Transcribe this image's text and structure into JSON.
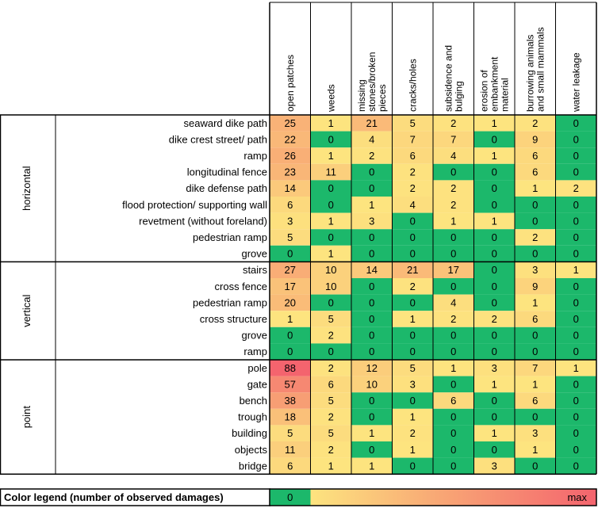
{
  "chart_data": {
    "type": "heatmap",
    "title": "",
    "columns": [
      [
        "open patches"
      ],
      [
        "weeds"
      ],
      [
        "missing",
        "stones/broken",
        "pieces"
      ],
      [
        "cracks/holes"
      ],
      [
        "subsidence and",
        "bulging"
      ],
      [
        "erosion of",
        "embankment",
        "material"
      ],
      [
        "burrowing animals",
        "and small mammals"
      ],
      [
        "water leakage"
      ]
    ],
    "groups": [
      {
        "name": "horizontal",
        "rows": [
          {
            "label": "seaward dike path",
            "values": [
              25,
              1,
              21,
              5,
              2,
              1,
              2,
              0
            ]
          },
          {
            "label": "dike crest street/ path",
            "values": [
              22,
              0,
              4,
              7,
              7,
              0,
              9,
              0
            ]
          },
          {
            "label": "ramp",
            "values": [
              26,
              1,
              2,
              6,
              4,
              1,
              6,
              0
            ]
          },
          {
            "label": "longitudinal fence",
            "values": [
              23,
              11,
              0,
              2,
              0,
              0,
              6,
              0
            ]
          },
          {
            "label": "dike defense path",
            "values": [
              14,
              0,
              0,
              2,
              2,
              0,
              1,
              2
            ]
          },
          {
            "label": "flood protection/ supporting wall",
            "values": [
              6,
              0,
              1,
              4,
              2,
              0,
              0,
              0
            ]
          },
          {
            "label": "revetment (without foreland)",
            "values": [
              3,
              1,
              3,
              0,
              1,
              1,
              0,
              0
            ]
          },
          {
            "label": "pedestrian ramp",
            "values": [
              5,
              0,
              0,
              0,
              0,
              0,
              2,
              0
            ]
          },
          {
            "label": "grove",
            "values": [
              0,
              1,
              0,
              0,
              0,
              0,
              0,
              0
            ]
          }
        ]
      },
      {
        "name": "vertical",
        "rows": [
          {
            "label": "stairs",
            "values": [
              27,
              10,
              14,
              21,
              17,
              0,
              3,
              1
            ]
          },
          {
            "label": "cross fence",
            "values": [
              17,
              10,
              0,
              2,
              0,
              0,
              9,
              0
            ]
          },
          {
            "label": "pedestrian ramp",
            "values": [
              20,
              0,
              0,
              0,
              4,
              0,
              1,
              0
            ]
          },
          {
            "label": "cross structure",
            "values": [
              1,
              5,
              0,
              1,
              2,
              2,
              6,
              0
            ]
          },
          {
            "label": "grove",
            "values": [
              0,
              2,
              0,
              0,
              0,
              0,
              0,
              0
            ]
          },
          {
            "label": "ramp",
            "values": [
              0,
              0,
              0,
              0,
              0,
              0,
              0,
              0
            ]
          }
        ]
      },
      {
        "name": "point",
        "rows": [
          {
            "label": "pole",
            "values": [
              88,
              2,
              12,
              5,
              1,
              3,
              7,
              1
            ]
          },
          {
            "label": "gate",
            "values": [
              57,
              6,
              10,
              3,
              0,
              1,
              1,
              0
            ]
          },
          {
            "label": "bench",
            "values": [
              38,
              5,
              0,
              0,
              6,
              0,
              6,
              0
            ]
          },
          {
            "label": "trough",
            "values": [
              18,
              2,
              0,
              1,
              0,
              0,
              0,
              0
            ]
          },
          {
            "label": "building",
            "values": [
              5,
              5,
              1,
              2,
              0,
              1,
              3,
              0
            ]
          },
          {
            "label": "objects",
            "values": [
              11,
              2,
              0,
              1,
              0,
              0,
              1,
              0
            ]
          },
          {
            "label": "bridge",
            "values": [
              6,
              1,
              1,
              0,
              0,
              3,
              0,
              0
            ]
          }
        ]
      }
    ],
    "legend": {
      "label": "Color legend (number of observed damages)",
      "min_label": "0",
      "max_label": "max"
    },
    "colors": {
      "zero": "#1cb86b",
      "low": "#fde47f",
      "mid": "#f8a775",
      "high": "#f4646e"
    },
    "value_range": [
      0,
      88
    ]
  }
}
